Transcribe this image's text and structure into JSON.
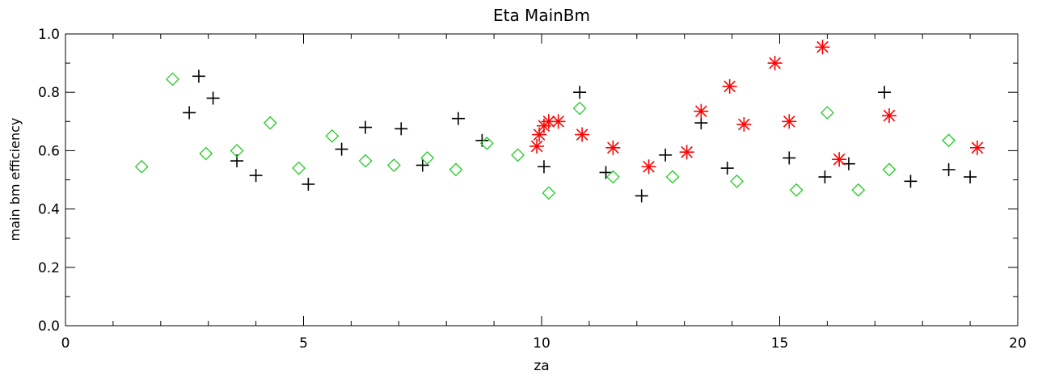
{
  "chart_data": {
    "type": "scatter",
    "title": "Eta MainBm",
    "xlabel": "za",
    "ylabel": "main bm efficiency",
    "xlim": [
      0,
      20
    ],
    "ylim": [
      0,
      1.0
    ],
    "x_ticks": [
      "0",
      "5",
      "10",
      "15",
      "20"
    ],
    "y_ticks": [
      "0.0",
      "0.2",
      "0.4",
      "0.6",
      "0.8",
      "1.0"
    ],
    "grid": false,
    "series": [
      {
        "marker": "plus",
        "color": "#000000",
        "points": [
          [
            2.6,
            0.73
          ],
          [
            2.8,
            0.855
          ],
          [
            3.1,
            0.78
          ],
          [
            3.6,
            0.565
          ],
          [
            4.0,
            0.515
          ],
          [
            5.1,
            0.485
          ],
          [
            5.8,
            0.605
          ],
          [
            6.3,
            0.68
          ],
          [
            7.05,
            0.675
          ],
          [
            7.5,
            0.55
          ],
          [
            8.25,
            0.71
          ],
          [
            8.75,
            0.635
          ],
          [
            10.05,
            0.545
          ],
          [
            10.8,
            0.8
          ],
          [
            11.35,
            0.525
          ],
          [
            12.1,
            0.445
          ],
          [
            12.6,
            0.585
          ],
          [
            13.35,
            0.695
          ],
          [
            13.9,
            0.54
          ],
          [
            15.2,
            0.575
          ],
          [
            15.95,
            0.51
          ],
          [
            16.45,
            0.555
          ],
          [
            17.2,
            0.8
          ],
          [
            17.75,
            0.495
          ],
          [
            18.55,
            0.535
          ],
          [
            19.0,
            0.51
          ]
        ]
      },
      {
        "marker": "diamond",
        "color": "#22cc22",
        "points": [
          [
            1.6,
            0.545
          ],
          [
            2.25,
            0.845
          ],
          [
            2.95,
            0.59
          ],
          [
            3.6,
            0.6
          ],
          [
            4.3,
            0.695
          ],
          [
            4.9,
            0.54
          ],
          [
            5.6,
            0.65
          ],
          [
            6.3,
            0.565
          ],
          [
            6.9,
            0.55
          ],
          [
            7.6,
            0.575
          ],
          [
            8.2,
            0.535
          ],
          [
            8.85,
            0.625
          ],
          [
            9.5,
            0.585
          ],
          [
            10.15,
            0.455
          ],
          [
            10.8,
            0.745
          ],
          [
            11.5,
            0.51
          ],
          [
            12.75,
            0.51
          ],
          [
            14.1,
            0.495
          ],
          [
            15.35,
            0.465
          ],
          [
            16.0,
            0.73
          ],
          [
            16.65,
            0.465
          ],
          [
            17.3,
            0.535
          ],
          [
            18.55,
            0.635
          ]
        ]
      },
      {
        "marker": "asterisk",
        "color": "#ff0000",
        "points": [
          [
            9.9,
            0.615
          ],
          [
            9.95,
            0.655
          ],
          [
            10.05,
            0.685
          ],
          [
            10.15,
            0.7
          ],
          [
            10.35,
            0.7
          ],
          [
            10.85,
            0.655
          ],
          [
            11.5,
            0.61
          ],
          [
            12.25,
            0.545
          ],
          [
            13.05,
            0.595
          ],
          [
            13.35,
            0.735
          ],
          [
            13.95,
            0.82
          ],
          [
            14.25,
            0.69
          ],
          [
            14.9,
            0.9
          ],
          [
            15.2,
            0.7
          ],
          [
            15.9,
            0.955
          ],
          [
            16.25,
            0.57
          ],
          [
            17.3,
            0.72
          ],
          [
            19.15,
            0.61
          ]
        ]
      }
    ]
  }
}
